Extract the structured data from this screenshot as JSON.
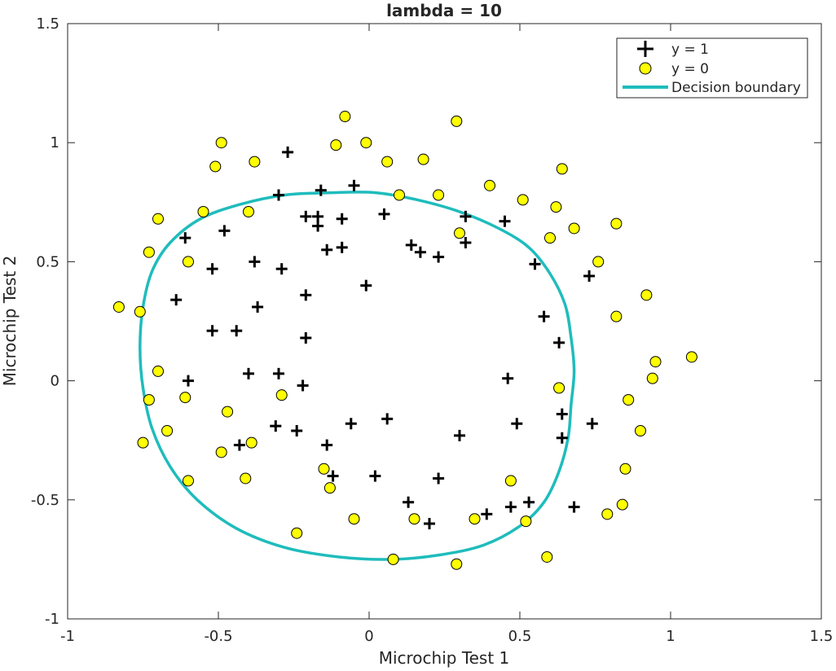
{
  "chart_data": {
    "type": "scatter",
    "title": "lambda = 10",
    "xlabel": "Microchip Test 1",
    "ylabel": "Microchip Test 2",
    "xlim": [
      -1,
      1.5
    ],
    "ylim": [
      -1,
      1.5
    ],
    "xticks": [
      -1,
      -0.5,
      0,
      0.5,
      1,
      1.5
    ],
    "yticks": [
      -1,
      -0.5,
      0,
      0.5,
      1,
      1.5
    ],
    "xtick_labels": [
      "-1",
      "-0.5",
      "0",
      "0.5",
      "1",
      "1.5"
    ],
    "ytick_labels": [
      "-1",
      "-0.5",
      "0",
      "0.5",
      "1",
      "1.5"
    ],
    "grid": false,
    "legend": {
      "placement": "top-right",
      "entries": [
        "y = 1",
        "y = 0",
        "Decision boundary"
      ]
    },
    "colors": {
      "positive": "#000000",
      "negative_fill": "#ffff00",
      "negative_edge": "#000000",
      "boundary": "#1fbcbc"
    },
    "series": [
      {
        "name": "y = 1",
        "marker": "plus",
        "points": [
          [
            -0.27,
            0.96
          ],
          [
            -0.3,
            0.78
          ],
          [
            -0.16,
            0.8
          ],
          [
            -0.05,
            0.82
          ],
          [
            -0.21,
            0.69
          ],
          [
            -0.17,
            0.69
          ],
          [
            -0.17,
            0.65
          ],
          [
            -0.09,
            0.68
          ],
          [
            0.05,
            0.7
          ],
          [
            -0.61,
            0.6
          ],
          [
            -0.48,
            0.63
          ],
          [
            -0.38,
            0.5
          ],
          [
            -0.29,
            0.47
          ],
          [
            -0.52,
            0.47
          ],
          [
            -0.14,
            0.55
          ],
          [
            -0.09,
            0.56
          ],
          [
            0.14,
            0.57
          ],
          [
            0.17,
            0.54
          ],
          [
            0.23,
            0.52
          ],
          [
            0.32,
            0.69
          ],
          [
            0.32,
            0.58
          ],
          [
            0.45,
            0.67
          ],
          [
            -0.64,
            0.34
          ],
          [
            -0.21,
            0.36
          ],
          [
            -0.37,
            0.31
          ],
          [
            -0.01,
            0.4
          ],
          [
            -0.52,
            0.21
          ],
          [
            -0.44,
            0.21
          ],
          [
            -0.21,
            0.18
          ],
          [
            -0.6,
            0.0
          ],
          [
            -0.4,
            0.03
          ],
          [
            -0.3,
            0.03
          ],
          [
            -0.22,
            -0.02
          ],
          [
            0.55,
            0.49
          ],
          [
            0.58,
            0.27
          ],
          [
            0.63,
            0.16
          ],
          [
            0.73,
            0.44
          ],
          [
            0.46,
            0.01
          ],
          [
            -0.31,
            -0.19
          ],
          [
            -0.24,
            -0.21
          ],
          [
            -0.06,
            -0.18
          ],
          [
            0.06,
            -0.16
          ],
          [
            -0.43,
            -0.27
          ],
          [
            -0.14,
            -0.27
          ],
          [
            -0.12,
            -0.4
          ],
          [
            0.02,
            -0.4
          ],
          [
            0.3,
            -0.23
          ],
          [
            0.49,
            -0.18
          ],
          [
            0.64,
            -0.14
          ],
          [
            0.64,
            -0.24
          ],
          [
            0.74,
            -0.18
          ],
          [
            0.23,
            -0.41
          ],
          [
            0.13,
            -0.51
          ],
          [
            0.2,
            -0.6
          ],
          [
            0.39,
            -0.56
          ],
          [
            0.47,
            -0.53
          ],
          [
            0.53,
            -0.51
          ],
          [
            0.68,
            -0.53
          ]
        ]
      },
      {
        "name": "y = 0",
        "marker": "circle",
        "points": [
          [
            -0.08,
            1.11
          ],
          [
            0.29,
            1.09
          ],
          [
            -0.49,
            1.0
          ],
          [
            -0.11,
            0.99
          ],
          [
            -0.01,
            1.0
          ],
          [
            -0.51,
            0.9
          ],
          [
            -0.38,
            0.92
          ],
          [
            0.06,
            0.92
          ],
          [
            0.18,
            0.93
          ],
          [
            0.4,
            0.82
          ],
          [
            0.64,
            0.89
          ],
          [
            0.1,
            0.78
          ],
          [
            0.23,
            0.78
          ],
          [
            0.51,
            0.76
          ],
          [
            0.62,
            0.73
          ],
          [
            -0.55,
            0.71
          ],
          [
            -0.7,
            0.68
          ],
          [
            -0.4,
            0.71
          ],
          [
            0.68,
            0.64
          ],
          [
            0.82,
            0.66
          ],
          [
            0.3,
            0.62
          ],
          [
            0.6,
            0.6
          ],
          [
            -0.73,
            0.54
          ],
          [
            -0.6,
            0.5
          ],
          [
            0.76,
            0.5
          ],
          [
            -0.83,
            0.31
          ],
          [
            -0.76,
            0.29
          ],
          [
            0.92,
            0.36
          ],
          [
            0.82,
            0.27
          ],
          [
            -0.7,
            0.04
          ],
          [
            0.95,
            0.08
          ],
          [
            1.07,
            0.1
          ],
          [
            0.94,
            0.01
          ],
          [
            0.63,
            -0.03
          ],
          [
            -0.61,
            -0.07
          ],
          [
            -0.73,
            -0.08
          ],
          [
            -0.29,
            -0.06
          ],
          [
            -0.47,
            -0.13
          ],
          [
            0.86,
            -0.08
          ],
          [
            0.9,
            -0.21
          ],
          [
            -0.67,
            -0.21
          ],
          [
            -0.75,
            -0.26
          ],
          [
            -0.49,
            -0.3
          ],
          [
            -0.39,
            -0.26
          ],
          [
            -0.15,
            -0.37
          ],
          [
            -0.41,
            -0.41
          ],
          [
            -0.13,
            -0.45
          ],
          [
            -0.6,
            -0.42
          ],
          [
            0.85,
            -0.37
          ],
          [
            0.47,
            -0.42
          ],
          [
            -0.05,
            -0.58
          ],
          [
            0.15,
            -0.58
          ],
          [
            0.35,
            -0.58
          ],
          [
            0.52,
            -0.59
          ],
          [
            0.79,
            -0.56
          ],
          [
            0.84,
            -0.52
          ],
          [
            -0.24,
            -0.64
          ],
          [
            0.08,
            -0.75
          ],
          [
            0.29,
            -0.77
          ],
          [
            0.59,
            -0.74
          ]
        ]
      }
    ],
    "decision_boundary": {
      "name": "Decision boundary",
      "points": [
        [
          -0.12,
          0.79
        ],
        [
          0.02,
          0.79
        ],
        [
          0.16,
          0.76
        ],
        [
          0.3,
          0.71
        ],
        [
          0.43,
          0.64
        ],
        [
          0.53,
          0.56
        ],
        [
          0.6,
          0.45
        ],
        [
          0.65,
          0.32
        ],
        [
          0.67,
          0.18
        ],
        [
          0.68,
          0.04
        ],
        [
          0.67,
          -0.1
        ],
        [
          0.66,
          -0.24
        ],
        [
          0.63,
          -0.38
        ],
        [
          0.58,
          -0.51
        ],
        [
          0.5,
          -0.61
        ],
        [
          0.38,
          -0.69
        ],
        [
          0.24,
          -0.73
        ],
        [
          0.08,
          -0.75
        ],
        [
          -0.1,
          -0.74
        ],
        [
          -0.28,
          -0.7
        ],
        [
          -0.44,
          -0.62
        ],
        [
          -0.57,
          -0.5
        ],
        [
          -0.66,
          -0.36
        ],
        [
          -0.72,
          -0.2
        ],
        [
          -0.75,
          -0.03
        ],
        [
          -0.76,
          0.14
        ],
        [
          -0.75,
          0.31
        ],
        [
          -0.72,
          0.46
        ],
        [
          -0.66,
          0.58
        ],
        [
          -0.56,
          0.68
        ],
        [
          -0.43,
          0.74
        ],
        [
          -0.28,
          0.78
        ]
      ]
    }
  }
}
